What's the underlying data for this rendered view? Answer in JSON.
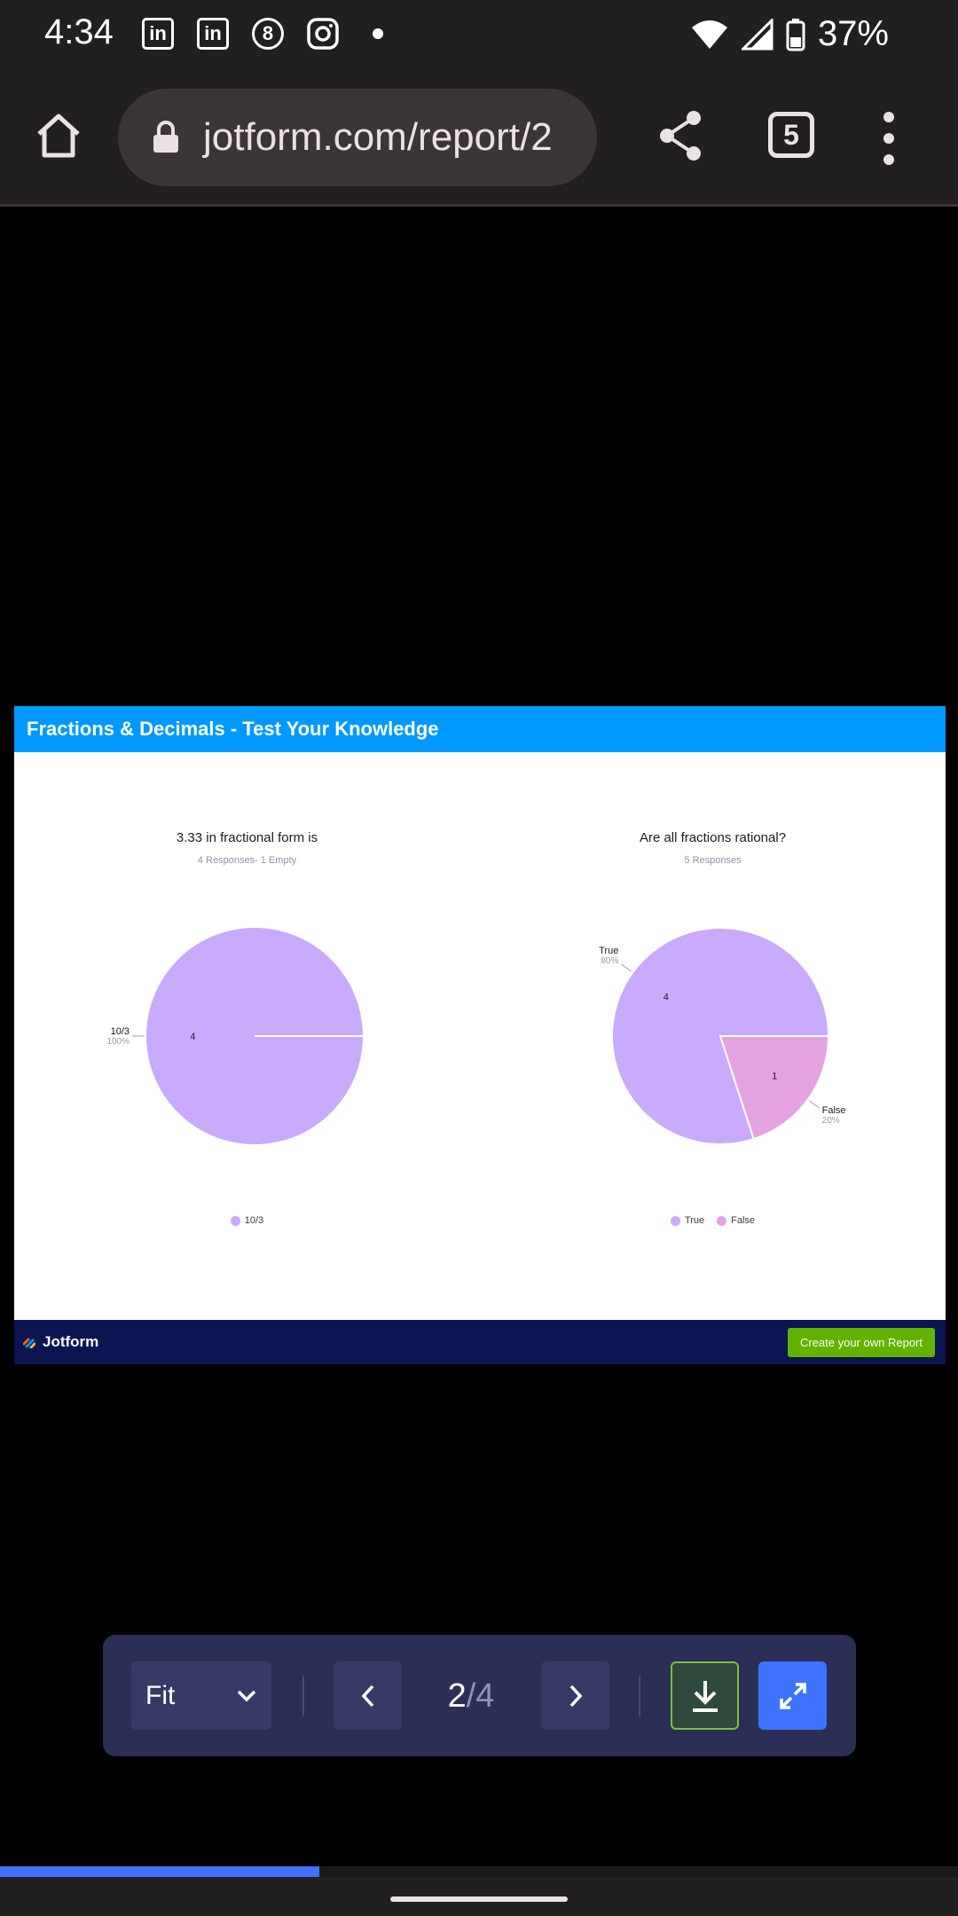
{
  "status_bar": {
    "time": "4:34",
    "notification_icons": [
      "linkedin-icon",
      "linkedin-icon",
      "pool-8-ball-icon",
      "instagram-icon",
      "dot-icon"
    ],
    "linkedin_glyph": "in",
    "eightball_glyph": "8",
    "battery": "37%"
  },
  "browser": {
    "url": "jotform.com/report/2",
    "tab_count": "5"
  },
  "report": {
    "title": "Fractions & Decimals - Test Your Knowledge",
    "brand": "Jotform",
    "cta": "Create your own Report",
    "colors": {
      "header": "#0099ff",
      "footer": "#0a1551",
      "cta": "#64b200",
      "slice_a": "#c8aaff",
      "slice_b": "#e4a2e0"
    }
  },
  "chart_data": [
    {
      "type": "pie",
      "title": "3.33 in fractional form is",
      "subtitle": "4 Responses- 1 Empty",
      "categories": [
        "10/3"
      ],
      "values": [
        4
      ],
      "percent_labels": [
        "100%"
      ],
      "legend": [
        "10/3"
      ],
      "colors": [
        "#c8aaff"
      ]
    },
    {
      "type": "pie",
      "title": "Are all fractions rational?",
      "subtitle": "5 Responses",
      "categories": [
        "True",
        "False"
      ],
      "values": [
        4,
        1
      ],
      "percent_labels": [
        "80%",
        "20%"
      ],
      "legend": [
        "True",
        "False"
      ],
      "colors": [
        "#c8aaff",
        "#e4a2e0"
      ]
    }
  ],
  "viewer": {
    "fit_label": "Fit",
    "current_page": "2",
    "page_separator": "/",
    "total_pages": "4",
    "progress": 0.333
  }
}
